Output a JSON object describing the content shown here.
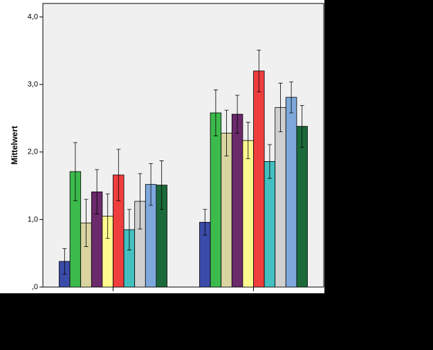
{
  "chart_data": {
    "type": "bar",
    "y_label": "Mittelwert",
    "categories": [
      null,
      null
    ],
    "series": [
      {
        "color": "#3b4ba8",
        "values": [
          0.38,
          0.96
        ],
        "errors": [
          0.19,
          0.19
        ]
      },
      {
        "color": "#3cba4c",
        "values": [
          1.71,
          2.58
        ],
        "errors": [
          0.43,
          0.34
        ]
      },
      {
        "color": "#d9d4a0",
        "values": [
          0.95,
          2.28
        ],
        "errors": [
          0.35,
          0.34
        ]
      },
      {
        "color": "#6b2a6b",
        "values": [
          1.41,
          2.56
        ],
        "errors": [
          0.33,
          0.28
        ]
      },
      {
        "color": "#fefa8f",
        "values": [
          1.05,
          2.17
        ],
        "errors": [
          0.33,
          0.27
        ]
      },
      {
        "color": "#ef3e3e",
        "values": [
          1.66,
          3.2
        ],
        "errors": [
          0.38,
          0.31
        ]
      },
      {
        "color": "#44c0c0",
        "values": [
          0.85,
          1.86
        ],
        "errors": [
          0.3,
          0.25
        ]
      },
      {
        "color": "#d0d0d0",
        "values": [
          1.27,
          2.66
        ],
        "errors": [
          0.41,
          0.36
        ]
      },
      {
        "color": "#7ea8dc",
        "values": [
          1.52,
          2.81
        ],
        "errors": [
          0.31,
          0.23
        ]
      },
      {
        "color": "#1c6a3a",
        "values": [
          1.51,
          2.38
        ],
        "errors": [
          0.36,
          0.31
        ]
      }
    ],
    "ylim": [
      0,
      4.2
    ],
    "yticks": [
      {
        "value": 0,
        "label": ",0"
      },
      {
        "value": 1,
        "label": "1,0"
      },
      {
        "value": 2,
        "label": "2,0"
      },
      {
        "value": 3,
        "label": "3,0"
      },
      {
        "value": 4,
        "label": "4,0"
      }
    ],
    "grid": false
  }
}
